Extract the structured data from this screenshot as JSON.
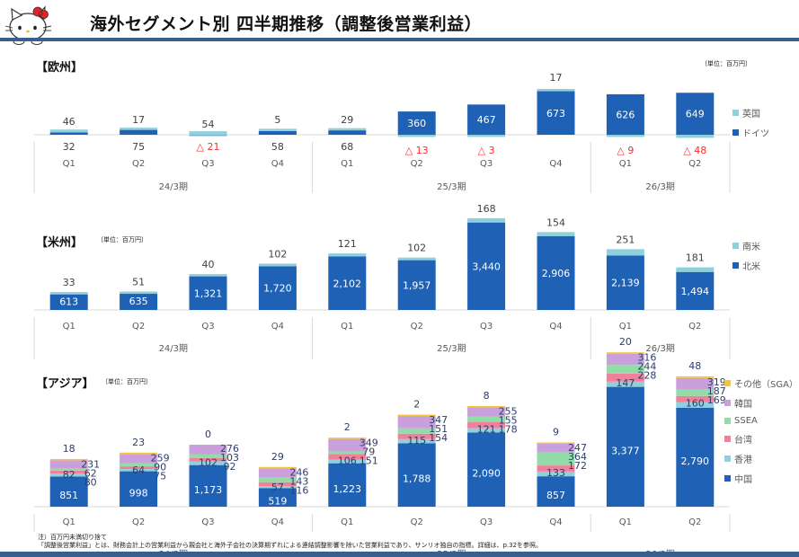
{
  "header": {
    "title": "海外セグメント別 四半期推移（調整後営業利益）",
    "logo_icon": "hello-kitty-logo"
  },
  "colors": {
    "brand_rule": "#3a5f8f",
    "dark_blue": "#1f62b5",
    "light_blue": "#8ed0dc",
    "pink": "#f2809a",
    "green": "#93dca8",
    "purple": "#c9a0dc",
    "orange": "#f5c242",
    "negative": "#ff2a2a"
  },
  "unit_label": "〔単位：百万円〕",
  "chart_data": [
    {
      "id": "europe",
      "type": "bar",
      "stacked": true,
      "title": "【欧州】",
      "unit": "〔単位：百万円〕",
      "categories": [
        "Q1",
        "Q2",
        "Q3",
        "Q4",
        "Q1",
        "Q2",
        "Q3",
        "Q4",
        "Q1",
        "Q2"
      ],
      "period_groups": [
        {
          "label": "24/3期",
          "count": 4
        },
        {
          "label": "25/3期",
          "count": 4
        },
        {
          "label": "26/3期",
          "count": 2
        }
      ],
      "series": [
        {
          "name": "ドイツ",
          "color": "#1f62b5",
          "values": [
            32,
            75,
            -21,
            58,
            68,
            360,
            467,
            673,
            626,
            649
          ]
        },
        {
          "name": "英国",
          "color": "#8ed0dc",
          "values": [
            46,
            17,
            54,
            5,
            29,
            -13,
            -3,
            17,
            -9,
            -48
          ]
        }
      ],
      "legend": [
        "英国",
        "ドイツ"
      ],
      "legend_position": "right",
      "ylim": [
        -60,
        720
      ]
    },
    {
      "id": "americas",
      "type": "bar",
      "stacked": true,
      "title": "【米州】",
      "unit": "〔単位：百万円〕",
      "categories": [
        "Q1",
        "Q2",
        "Q3",
        "Q4",
        "Q1",
        "Q2",
        "Q3",
        "Q4",
        "Q1",
        "Q2"
      ],
      "period_groups": [
        {
          "label": "24/3期",
          "count": 4
        },
        {
          "label": "25/3期",
          "count": 4
        },
        {
          "label": "26/3期",
          "count": 2
        }
      ],
      "series": [
        {
          "name": "北米",
          "color": "#1f62b5",
          "values": [
            613,
            635,
            1321,
            1720,
            2102,
            1957,
            3440,
            2906,
            2139,
            1494
          ]
        },
        {
          "name": "南米",
          "color": "#8ed0dc",
          "values": [
            33,
            51,
            40,
            102,
            121,
            102,
            168,
            154,
            251,
            181
          ]
        }
      ],
      "legend": [
        "南米",
        "北米"
      ],
      "legend_position": "right",
      "ylim": [
        0,
        3700
      ]
    },
    {
      "id": "asia",
      "type": "bar",
      "stacked": true,
      "title": "【アジア】",
      "unit": "〔単位：百万円〕",
      "categories": [
        "Q1",
        "Q2",
        "Q3",
        "Q4",
        "Q1",
        "Q2",
        "Q3",
        "Q4",
        "Q1",
        "Q2"
      ],
      "period_groups": [
        {
          "label": "24/3期",
          "count": 4
        },
        {
          "label": "25/3期",
          "count": 4
        },
        {
          "label": "26/3期",
          "count": 2
        }
      ],
      "series": [
        {
          "name": "中国",
          "color": "#1f62b5",
          "values": [
            851,
            998,
            1173,
            519,
            1223,
            1788,
            2090,
            857,
            3377,
            2790
          ]
        },
        {
          "name": "香港",
          "color": "#8ed0dc",
          "values": [
            82,
            64,
            102,
            57,
            106,
            115,
            121,
            133,
            147,
            160
          ]
        },
        {
          "name": "台湾",
          "color": "#f2809a",
          "values": [
            80,
            75,
            92,
            116,
            151,
            154,
            178,
            172,
            228,
            169
          ]
        },
        {
          "name": "SSEA",
          "color": "#93dca8",
          "values": [
            62,
            90,
            103,
            143,
            79,
            151,
            155,
            364,
            244,
            187
          ]
        },
        {
          "name": "韓国",
          "color": "#c9a0dc",
          "values": [
            231,
            259,
            276,
            246,
            349,
            347,
            255,
            247,
            316,
            319
          ]
        },
        {
          "name": "その他（SGA）",
          "color": "#f5c242",
          "values": [
            18,
            23,
            0,
            29,
            2,
            2,
            8,
            9,
            20,
            48
          ]
        }
      ],
      "legend": [
        "その他（SGA）",
        "韓国",
        "SSEA",
        "台湾",
        "香港",
        "中国"
      ],
      "legend_position": "right",
      "ylim": [
        0,
        4400
      ]
    }
  ],
  "footnote": {
    "line1": "注）百万円未満切り捨て",
    "line2": "「調整後営業利益」とは、財務会計上の営業利益から親会社と海外子会社の決算期ずれによる連結調整影響を除いた営業利益であり、サンリオ独自の指標。詳細は、p.32を参照。"
  }
}
